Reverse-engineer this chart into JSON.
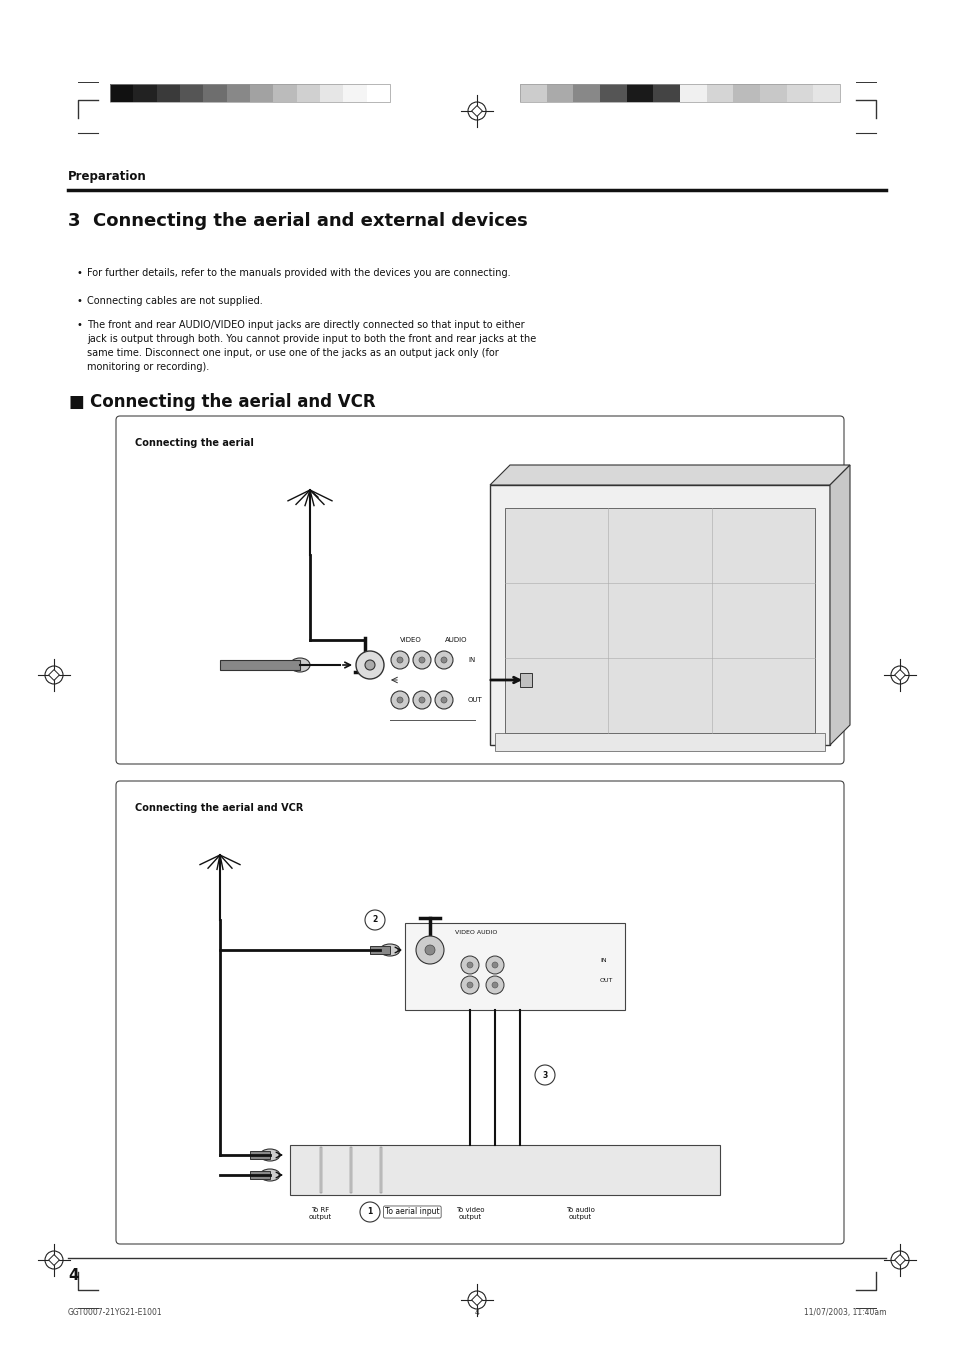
{
  "bg_color": "#ffffff",
  "page_width": 9.54,
  "page_height": 13.51,
  "dpi": 100,
  "ml": 0.68,
  "mr": 0.68,
  "section_label": "Preparation",
  "title": "3  Connecting the aerial and external devices",
  "bullet1": "For further details, refer to the manuals provided with the devices you are connecting.",
  "bullet2": "Connecting cables are not supplied.",
  "bullet3a": "The front and rear AUDIO/VIDEO input jacks are directly connected so that input to either",
  "bullet3b": "jack is output through both. You cannot provide input to both the front and rear jacks at the",
  "bullet3c": "same time. Disconnect one input, or use one of the jacks as an output jack only (for",
  "bullet3d": "monitoring or recording).",
  "subsection": "Connecting the aerial and VCR",
  "box1_label": "Connecting the aerial",
  "box2_label": "Connecting the aerial and VCR",
  "page_number": "4",
  "footer_left": "GGT0007-21YG21-E1001",
  "footer_center": "4",
  "footer_right": "11/07/2003, 11:40am",
  "header_bar_left_colors": [
    "#111111",
    "#222222",
    "#3a3a3a",
    "#555555",
    "#6e6e6e",
    "#888888",
    "#a2a2a2",
    "#bbbbbb",
    "#d0d0d0",
    "#e6e6e6",
    "#f5f5f5",
    "#ffffff"
  ],
  "header_bar_right_colors": [
    "#cccccc",
    "#aaaaaa",
    "#888888",
    "#555555",
    "#1a1a1a",
    "#444444",
    "#f0f0f0",
    "#d5d5d5",
    "#bbbbbb",
    "#c8c8c8",
    "#d8d8d8",
    "#e5e5e5"
  ]
}
